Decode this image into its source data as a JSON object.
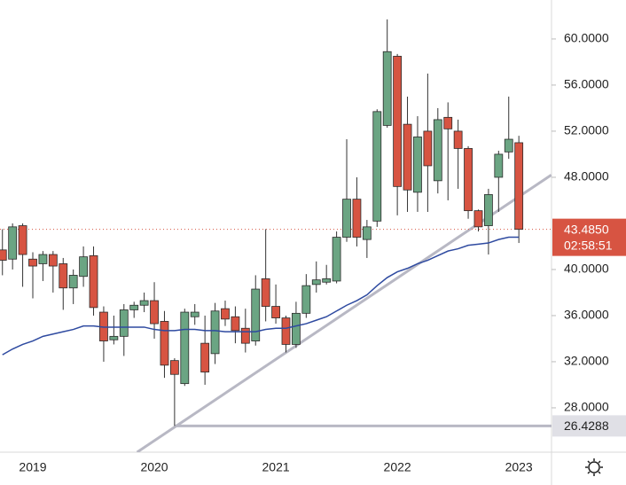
{
  "chart_data": {
    "type": "candlestick",
    "categories": [
      null,
      null,
      null,
      "2019",
      null,
      null,
      null,
      null,
      null,
      null,
      null,
      null,
      null,
      null,
      null,
      "2020",
      null,
      null,
      null,
      null,
      null,
      null,
      null,
      null,
      null,
      null,
      null,
      "2021",
      null,
      null,
      null,
      null,
      null,
      null,
      null,
      null,
      null,
      null,
      null,
      "2022",
      null,
      null,
      null,
      null,
      null,
      null,
      null,
      null,
      null,
      null,
      null,
      "2023"
    ],
    "open": [
      41.7,
      40.9,
      43.8,
      40.9,
      40.5,
      41.3,
      40.5,
      38.4,
      39.4,
      41.2,
      36.3,
      33.9,
      34.2,
      36.5,
      36.9,
      37.3,
      35.5,
      32.1,
      30.1,
      35.9,
      33.6,
      32.7,
      36.6,
      35.9,
      34.9,
      33.8,
      39.2,
      36.8,
      35.8,
      33.5,
      36.2,
      38.7,
      38.9,
      39.0,
      42.8,
      46.1,
      42.6,
      44.2,
      52.5,
      58.5,
      52.6,
      46.7,
      52.0,
      47.7,
      53.2,
      52.0,
      50.5,
      45.1,
      43.8,
      48.0,
      50.2,
      51.0
    ],
    "high": [
      43.5,
      44.0,
      44.0,
      41.5,
      41.6,
      41.6,
      41.0,
      40.0,
      42.0,
      42.0,
      36.8,
      36.0,
      37.0,
      37.2,
      38.0,
      38.9,
      36.4,
      32.3,
      36.6,
      37.0,
      36.0,
      37.1,
      37.3,
      36.8,
      36.6,
      39.5,
      43.5,
      38.7,
      36.0,
      37.2,
      39.6,
      40.7,
      40.4,
      43.3,
      51.3,
      48.0,
      44.3,
      53.9,
      61.7,
      58.7,
      55.0,
      53.3,
      57.0,
      54.0,
      54.5,
      53.0,
      50.7,
      45.2,
      47.0,
      50.3,
      55.0,
      51.6
    ],
    "low": [
      39.5,
      40.0,
      38.5,
      37.5,
      39.0,
      38.0,
      36.5,
      37.0,
      38.5,
      36.0,
      32.0,
      33.5,
      32.5,
      35.8,
      36.3,
      34.0,
      30.6,
      26.4288,
      29.9,
      35.2,
      30.0,
      31.8,
      35.1,
      33.6,
      32.8,
      33.4,
      35.5,
      35.3,
      32.8,
      33.2,
      35.8,
      38.0,
      38.7,
      38.8,
      42.4,
      42.0,
      41.0,
      43.7,
      52.3,
      44.7,
      45.0,
      45.0,
      45.0,
      46.6,
      46.0,
      47.0,
      44.4,
      43.3,
      41.3,
      45.0,
      49.6,
      42.3
    ],
    "close": [
      40.8,
      43.7,
      41.3,
      40.3,
      41.3,
      40.3,
      38.4,
      39.5,
      41.1,
      36.7,
      33.8,
      34.2,
      36.5,
      36.9,
      37.3,
      35.3,
      31.7,
      30.9,
      36.3,
      36.3,
      31.1,
      36.4,
      35.7,
      34.7,
      33.6,
      38.3,
      36.8,
      35.8,
      33.5,
      36.2,
      38.6,
      39.1,
      39.2,
      42.8,
      46.1,
      42.8,
      43.7,
      53.7,
      58.9,
      47.2,
      46.9,
      51.5,
      49.0,
      53.0,
      52.2,
      50.5,
      45.1,
      43.7,
      46.5,
      50.0,
      51.3,
      43.485
    ],
    "up_color": "#6ba583",
    "down_color": "#d75442",
    "ma": {
      "color": "#2e4aa0",
      "values": [
        32.6,
        33.1,
        33.5,
        33.8,
        34.2,
        34.4,
        34.6,
        34.8,
        35.1,
        35.1,
        35.0,
        35.0,
        35.0,
        35.0,
        35.0,
        34.8,
        34.7,
        34.7,
        34.8,
        34.8,
        34.7,
        34.7,
        34.6,
        34.6,
        34.6,
        34.6,
        34.8,
        34.9,
        34.9,
        35.1,
        35.3,
        35.6,
        35.9,
        36.4,
        36.9,
        37.3,
        37.8,
        38.6,
        39.3,
        39.8,
        40.1,
        40.5,
        40.8,
        41.2,
        41.6,
        41.8,
        42.1,
        42.2,
        42.3,
        42.6,
        42.8,
        42.8
      ]
    },
    "trendline": {
      "x": [
        13.3,
        54.2
      ],
      "y": [
        24.15,
        48.2
      ],
      "color": "#b8b8c4"
    },
    "hline": {
      "value": 26.4288,
      "start": 17,
      "color": "#b8b8c4"
    },
    "last_price": {
      "value": 43.485,
      "label": "43.4850",
      "countdown": "02:58:51",
      "color": "#d75442"
    },
    "ylim": [
      24.15,
      63.38
    ],
    "yticks": [
      {
        "value": 28,
        "label": "28.0000"
      },
      {
        "value": 32,
        "label": "32.0000"
      },
      {
        "value": 36,
        "label": "36.0000"
      },
      {
        "value": 40,
        "label": "40.0000"
      },
      {
        "value": 48,
        "label": "48.0000"
      },
      {
        "value": 52,
        "label": "52.0000"
      },
      {
        "value": 56,
        "label": "56.0000"
      },
      {
        "value": 60,
        "label": "60.0000"
      }
    ],
    "grid": false
  }
}
